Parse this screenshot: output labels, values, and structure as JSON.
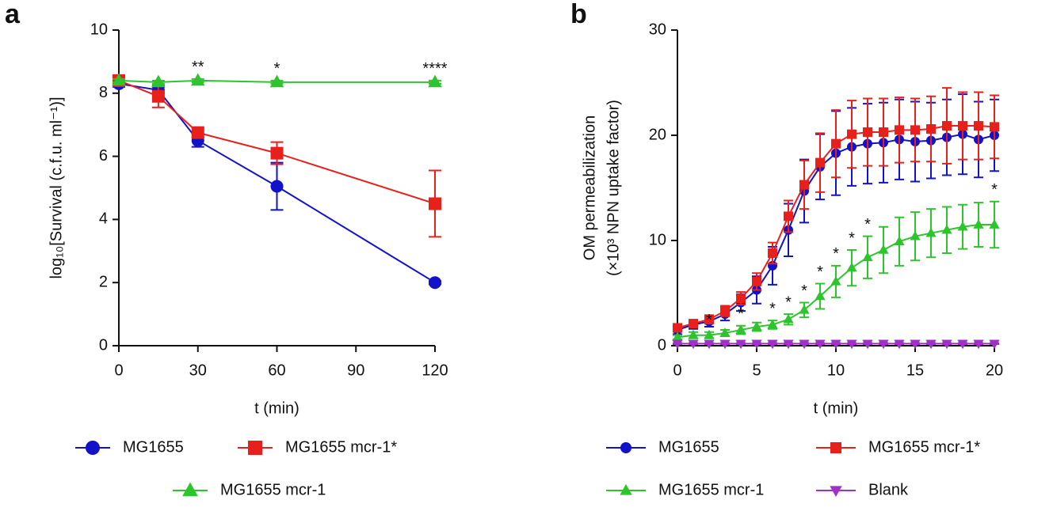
{
  "chart_data": [
    {
      "type": "line",
      "label": "a",
      "ylabel": "log₁₀[Survival (c.f.u. ml⁻¹)]",
      "xlabel": "t (min)",
      "x": [
        0,
        15,
        30,
        60,
        120
      ],
      "xlim": [
        0,
        120
      ],
      "xticks": [
        0,
        30,
        60,
        90,
        120
      ],
      "ylim": [
        0,
        10
      ],
      "yticks": [
        0,
        2,
        4,
        6,
        8,
        10
      ],
      "series": [
        {
          "name": "MG1655",
          "color": "#1212c8",
          "marker": "circle",
          "values": [
            8.3,
            8.1,
            6.5,
            5.05,
            2.0
          ],
          "errors": [
            0.1,
            0.1,
            0.2,
            0.75,
            0.05
          ]
        },
        {
          "name": "MG1655 mcr-1*",
          "color": "#e8201c",
          "marker": "square",
          "values": [
            8.4,
            7.9,
            6.75,
            6.1,
            4.5
          ],
          "errors": [
            0.1,
            0.35,
            0.15,
            0.35,
            1.05
          ]
        },
        {
          "name": "MG1655 mcr-1",
          "color": "#2ec42e",
          "marker": "triangle",
          "values": [
            8.4,
            8.35,
            8.4,
            8.35,
            8.35
          ],
          "errors": [
            0.05,
            0.05,
            0.05,
            0.05,
            0.05
          ]
        }
      ],
      "annotations": [
        {
          "text": "**",
          "x": 30
        },
        {
          "text": "*",
          "x": 60
        },
        {
          "text": "****",
          "x": 120
        }
      ]
    },
    {
      "type": "line",
      "label": "b",
      "ylabel": [
        "OM permeabilization",
        "(×10³ NPN uptake factor)"
      ],
      "xlabel": "t (min)",
      "x": [
        0,
        1,
        2,
        3,
        4,
        5,
        6,
        7,
        8,
        9,
        10,
        11,
        12,
        13,
        14,
        15,
        16,
        17,
        18,
        19,
        20
      ],
      "xlim": [
        0,
        20
      ],
      "xticks": [
        0,
        5,
        10,
        15,
        20
      ],
      "ylim": [
        0,
        30
      ],
      "yticks": [
        0,
        10,
        20,
        30
      ],
      "series": [
        {
          "name": "MG1655",
          "color": "#1212c8",
          "marker": "circle",
          "values": [
            1.5,
            2.0,
            2.3,
            3.0,
            4.1,
            5.3,
            7.6,
            11.0,
            14.7,
            17.0,
            18.3,
            18.9,
            19.2,
            19.3,
            19.6,
            19.4,
            19.5,
            19.8,
            20.1,
            19.6,
            20.0
          ],
          "errors": [
            0.4,
            0.4,
            0.5,
            0.6,
            0.8,
            1.3,
            1.8,
            2.5,
            3.0,
            3.1,
            4.0,
            3.7,
            3.8,
            3.8,
            3.8,
            3.8,
            3.6,
            3.6,
            3.8,
            3.6,
            3.4
          ]
        },
        {
          "name": "MG1655 mcr-1*",
          "color": "#e8201c",
          "marker": "square",
          "values": [
            1.7,
            2.1,
            2.5,
            3.3,
            4.5,
            6.1,
            8.8,
            12.3,
            15.3,
            17.4,
            19.2,
            20.1,
            20.3,
            20.3,
            20.5,
            20.5,
            20.6,
            20.9,
            20.9,
            20.9,
            20.8
          ],
          "errors": [
            0.3,
            0.3,
            0.4,
            0.5,
            0.6,
            0.8,
            1.0,
            1.5,
            2.3,
            2.8,
            3.2,
            3.2,
            3.2,
            3.2,
            3.1,
            3.0,
            3.1,
            3.6,
            3.2,
            3.2,
            3.0
          ]
        },
        {
          "name": "MG1655 mcr-1",
          "color": "#2ec42e",
          "marker": "triangle",
          "values": [
            0.8,
            1.0,
            1.0,
            1.2,
            1.5,
            1.8,
            2.0,
            2.5,
            3.4,
            4.7,
            6.1,
            7.4,
            8.4,
            9.1,
            9.9,
            10.4,
            10.7,
            11.0,
            11.3,
            11.5,
            11.5
          ],
          "errors": [
            0.2,
            0.3,
            0.3,
            0.3,
            0.4,
            0.4,
            0.4,
            0.5,
            0.7,
            1.2,
            1.5,
            1.7,
            2.0,
            2.2,
            2.3,
            2.3,
            2.3,
            2.2,
            2.1,
            2.1,
            2.2
          ]
        },
        {
          "name": "Blank",
          "color": "#a030c8",
          "marker": "triangle-down",
          "values": [
            0.2,
            0.2,
            0.2,
            0.2,
            0.2,
            0.2,
            0.2,
            0.2,
            0.2,
            0.2,
            0.2,
            0.2,
            0.2,
            0.2,
            0.2,
            0.2,
            0.2,
            0.2,
            0.2,
            0.2,
            0.2
          ],
          "errors": [
            0.05,
            0.05,
            0.05,
            0.05,
            0.05,
            0.05,
            0.05,
            0.05,
            0.05,
            0.05,
            0.05,
            0.05,
            0.05,
            0.05,
            0.05,
            0.05,
            0.05,
            0.05,
            0.05,
            0.05,
            0.05
          ]
        }
      ],
      "annotations": [
        {
          "text": "*",
          "x": 2
        },
        {
          "text": "*",
          "x": 4
        },
        {
          "text": "*",
          "x": 6
        },
        {
          "text": "*",
          "x": 7
        },
        {
          "text": "*",
          "x": 8
        },
        {
          "text": "*",
          "x": 9
        },
        {
          "text": "*",
          "x": 10
        },
        {
          "text": "*",
          "x": 11
        },
        {
          "text": "*",
          "x": 12
        },
        {
          "text": "*",
          "x": 20
        }
      ]
    }
  ]
}
